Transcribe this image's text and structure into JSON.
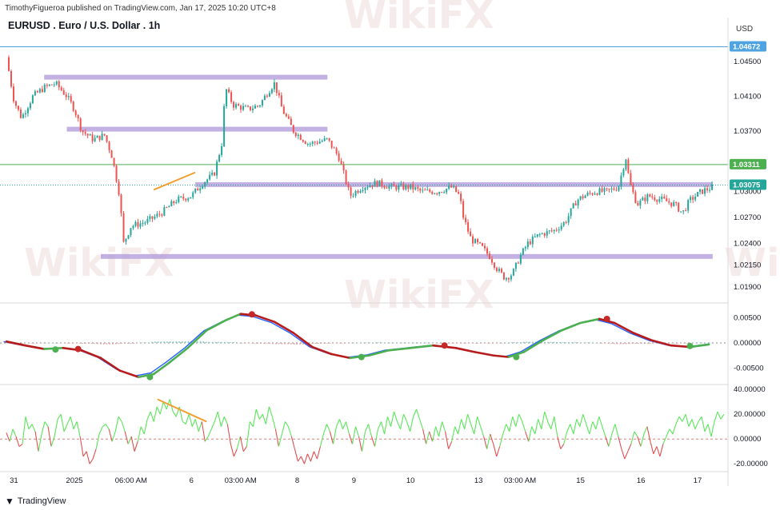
{
  "header": {
    "publisher": "TimothyFigueroa published on TradingView.com, Jan 17, 2025 10:20 UTC+8",
    "title": "EURUSD . Euro / U.S. Dollar . 1h",
    "currency": "USD",
    "footer_brand": "TradingView",
    "watermark": "WikiFX"
  },
  "colors": {
    "up": "#26a69a",
    "down": "#ef5350",
    "zone": "#b39ddb",
    "blue_line": "#2962ff",
    "green_line": "#4caf50",
    "red_line": "#b71c1c",
    "rsi_up": "#5ae65a",
    "rsi_down": "#e05050",
    "trend": "#f0a030"
  },
  "chart_data": [
    {
      "type": "candlestick",
      "panel": "price",
      "y_ticks": [
        "1.04500",
        "1.04100",
        "1.03700",
        "1.03300",
        "1.03000",
        "1.02700",
        "1.02400",
        "1.02150",
        "1.01900"
      ],
      "ylim": [
        1.0175,
        1.0475
      ],
      "price_path": [
        [
          0,
          1.0455
        ],
        [
          4,
          1.0405
        ],
        [
          8,
          1.0385
        ],
        [
          14,
          1.041
        ],
        [
          20,
          1.042
        ],
        [
          26,
          1.0425
        ],
        [
          32,
          1.041
        ],
        [
          36,
          1.0395
        ],
        [
          40,
          1.037
        ],
        [
          46,
          1.036
        ],
        [
          52,
          1.0365
        ],
        [
          56,
          1.034
        ],
        [
          60,
          1.0295
        ],
        [
          62,
          1.024
        ],
        [
          66,
          1.026
        ],
        [
          74,
          1.0265
        ],
        [
          82,
          1.0275
        ],
        [
          90,
          1.029
        ],
        [
          98,
          1.0295
        ],
        [
          104,
          1.031
        ],
        [
          110,
          1.032
        ],
        [
          114,
          1.0355
        ],
        [
          116,
          1.042
        ],
        [
          120,
          1.04
        ],
        [
          128,
          1.0395
        ],
        [
          134,
          1.04
        ],
        [
          140,
          1.042
        ],
        [
          142,
          1.0425
        ],
        [
          146,
          1.0395
        ],
        [
          152,
          1.037
        ],
        [
          160,
          1.0355
        ],
        [
          170,
          1.036
        ],
        [
          176,
          1.034
        ],
        [
          182,
          1.0295
        ],
        [
          188,
          1.0305
        ],
        [
          196,
          1.031
        ],
        [
          204,
          1.0305
        ],
        [
          214,
          1.0305
        ],
        [
          220,
          1.03
        ],
        [
          228,
          1.03
        ],
        [
          236,
          1.0305
        ],
        [
          240,
          1.0295
        ],
        [
          242,
          1.027
        ],
        [
          246,
          1.0245
        ],
        [
          252,
          1.0235
        ],
        [
          256,
          1.0225
        ],
        [
          260,
          1.021
        ],
        [
          264,
          1.02
        ],
        [
          268,
          1.0205
        ],
        [
          272,
          1.0225
        ],
        [
          276,
          1.024
        ],
        [
          282,
          1.025
        ],
        [
          290,
          1.0255
        ],
        [
          296,
          1.0265
        ],
        [
          302,
          1.029
        ],
        [
          306,
          1.0295
        ],
        [
          312,
          1.03
        ],
        [
          318,
          1.03
        ],
        [
          324,
          1.0305
        ],
        [
          328,
          1.034
        ],
        [
          330,
          1.031
        ],
        [
          334,
          1.0285
        ],
        [
          340,
          1.0295
        ],
        [
          348,
          1.029
        ],
        [
          354,
          1.0285
        ],
        [
          358,
          1.0275
        ],
        [
          362,
          1.029
        ],
        [
          368,
          1.03
        ],
        [
          374,
          1.0305
        ]
      ],
      "horizontal_zones": [
        {
          "price": 1.0432,
          "from": 20,
          "to": 170
        },
        {
          "price": 1.0372,
          "from": 32,
          "to": 170
        },
        {
          "price": 1.0308,
          "from": 100,
          "to": 374
        },
        {
          "price": 1.0225,
          "from": 50,
          "to": 374
        }
      ],
      "horizontal_lines": [
        {
          "price": 1.04672,
          "label": "1.04672",
          "color": "#4fa3e0"
        },
        {
          "price": 1.03311,
          "label": "1.03311",
          "color": "#4caf50"
        },
        {
          "price": 1.03075,
          "label": "1.03075",
          "color": "#26a69a"
        }
      ],
      "trendline": {
        "from": [
          78,
          1.0302
        ],
        "to": [
          100,
          1.0322
        ]
      }
    },
    {
      "type": "line",
      "panel": "oscillator",
      "y_ticks": [
        "0.00500",
        "0.00000",
        "-0.00500"
      ],
      "ylim": [
        -0.0078,
        0.0075
      ],
      "fast_line": [
        [
          0,
          0.0003
        ],
        [
          10,
          -0.0005
        ],
        [
          20,
          -0.0012
        ],
        [
          30,
          -0.001
        ],
        [
          40,
          -0.0015
        ],
        [
          50,
          -0.003
        ],
        [
          60,
          -0.0055
        ],
        [
          70,
          -0.0068
        ],
        [
          78,
          -0.0062
        ],
        [
          86,
          -0.004
        ],
        [
          96,
          -0.001
        ],
        [
          106,
          0.0025
        ],
        [
          116,
          0.0045
        ],
        [
          124,
          0.0058
        ],
        [
          132,
          0.0055
        ],
        [
          142,
          0.0042
        ],
        [
          152,
          0.002
        ],
        [
          162,
          -0.0008
        ],
        [
          172,
          -0.0022
        ],
        [
          182,
          -0.003
        ],
        [
          192,
          -0.0025
        ],
        [
          202,
          -0.0015
        ],
        [
          214,
          -0.001
        ],
        [
          226,
          -0.0005
        ],
        [
          238,
          -0.001
        ],
        [
          248,
          -0.0018
        ],
        [
          258,
          -0.0025
        ],
        [
          266,
          -0.0028
        ],
        [
          274,
          -0.0018
        ],
        [
          284,
          0.0005
        ],
        [
          294,
          0.0025
        ],
        [
          304,
          0.004
        ],
        [
          314,
          0.0048
        ],
        [
          322,
          0.004
        ],
        [
          332,
          0.002
        ],
        [
          342,
          0.0005
        ],
        [
          352,
          -0.0005
        ],
        [
          362,
          -0.0008
        ],
        [
          372,
          -0.0003
        ]
      ],
      "histogram_range": [
        0,
        374
      ],
      "markers": [
        {
          "x": 26,
          "value": -0.0013,
          "color": "green"
        },
        {
          "x": 38,
          "value": -0.0012,
          "color": "red"
        },
        {
          "x": 76,
          "value": -0.0068,
          "color": "green"
        },
        {
          "x": 130,
          "value": 0.0057,
          "color": "red"
        },
        {
          "x": 188,
          "value": -0.0028,
          "color": "green"
        },
        {
          "x": 232,
          "value": -0.0005,
          "color": "red"
        },
        {
          "x": 270,
          "value": -0.0028,
          "color": "green"
        },
        {
          "x": 318,
          "value": 0.0048,
          "color": "red"
        },
        {
          "x": 362,
          "value": -0.0006,
          "color": "green"
        }
      ]
    },
    {
      "type": "line",
      "panel": "rsi",
      "y_ticks": [
        "40.00000",
        "20.00000",
        "0.00000",
        "-20.00000"
      ],
      "ylim": [
        -25,
        42
      ],
      "values": [
        5,
        -2,
        8,
        2,
        -6,
        -4,
        18,
        8,
        12,
        6,
        -10,
        4,
        14,
        10,
        -6,
        2,
        16,
        20,
        6,
        12,
        18,
        8,
        14,
        2,
        -14,
        -10,
        -20,
        -16,
        -8,
        4,
        10,
        12,
        8,
        -2,
        6,
        18,
        14,
        6,
        -4,
        2,
        -10,
        -2,
        10,
        4,
        16,
        22,
        14,
        26,
        20,
        30,
        24,
        32,
        22,
        18,
        26,
        14,
        12,
        20,
        10,
        16,
        6,
        14,
        -2,
        2,
        8,
        14,
        22,
        10,
        18,
        12,
        -4,
        -14,
        -8,
        2,
        -10,
        -6,
        14,
        10,
        24,
        16,
        20,
        12,
        26,
        18,
        8,
        -6,
        4,
        14,
        10,
        2,
        -8,
        -18,
        -14,
        -20,
        -12,
        -18,
        -10,
        -16,
        -6,
        4,
        12,
        6,
        -4,
        10,
        16,
        8,
        14,
        4,
        -4,
        10,
        2,
        -10,
        6,
        12,
        2,
        -6,
        8,
        14,
        4,
        18,
        10,
        22,
        14,
        8,
        20,
        14,
        6,
        18,
        24,
        16,
        8,
        -4,
        6,
        -2,
        10,
        2,
        14,
        6,
        -8,
        -2,
        10,
        4,
        16,
        8,
        20,
        12,
        4,
        18,
        10,
        2,
        -8,
        4,
        -4,
        -14,
        -6,
        4,
        12,
        6,
        18,
        10,
        20,
        14,
        6,
        -2,
        10,
        4,
        16,
        8,
        22,
        14,
        8,
        18,
        2,
        -8,
        -4,
        6,
        12,
        4,
        16,
        10,
        20,
        12,
        4,
        14,
        8,
        18,
        10,
        2,
        -6,
        4,
        12,
        2,
        -8,
        -16,
        -10,
        -4,
        6,
        2,
        -6,
        4,
        10,
        -2,
        -12,
        -6,
        -14,
        -4,
        2,
        8,
        4,
        12,
        18,
        14,
        20,
        10,
        16,
        8,
        14,
        18,
        6,
        12,
        2,
        14,
        22,
        16,
        20
      ],
      "trendline": {
        "from": [
          80,
          32
        ],
        "to": [
          106,
          14
        ]
      }
    }
  ],
  "x_axis": {
    "ticks": [
      {
        "x": 4,
        "label": "31"
      },
      {
        "x": 36,
        "label": "2025"
      },
      {
        "x": 66,
        "label": "06:00 AM"
      },
      {
        "x": 98,
        "label": "6"
      },
      {
        "x": 124,
        "label": "03:00 AM"
      },
      {
        "x": 154,
        "label": "8"
      },
      {
        "x": 184,
        "label": "9"
      },
      {
        "x": 214,
        "label": "10"
      },
      {
        "x": 250,
        "label": "13"
      },
      {
        "x": 272,
        "label": "03:00 AM"
      },
      {
        "x": 304,
        "label": "15"
      },
      {
        "x": 336,
        "label": "16"
      },
      {
        "x": 366,
        "label": "17"
      }
    ],
    "range": [
      0,
      380
    ]
  }
}
